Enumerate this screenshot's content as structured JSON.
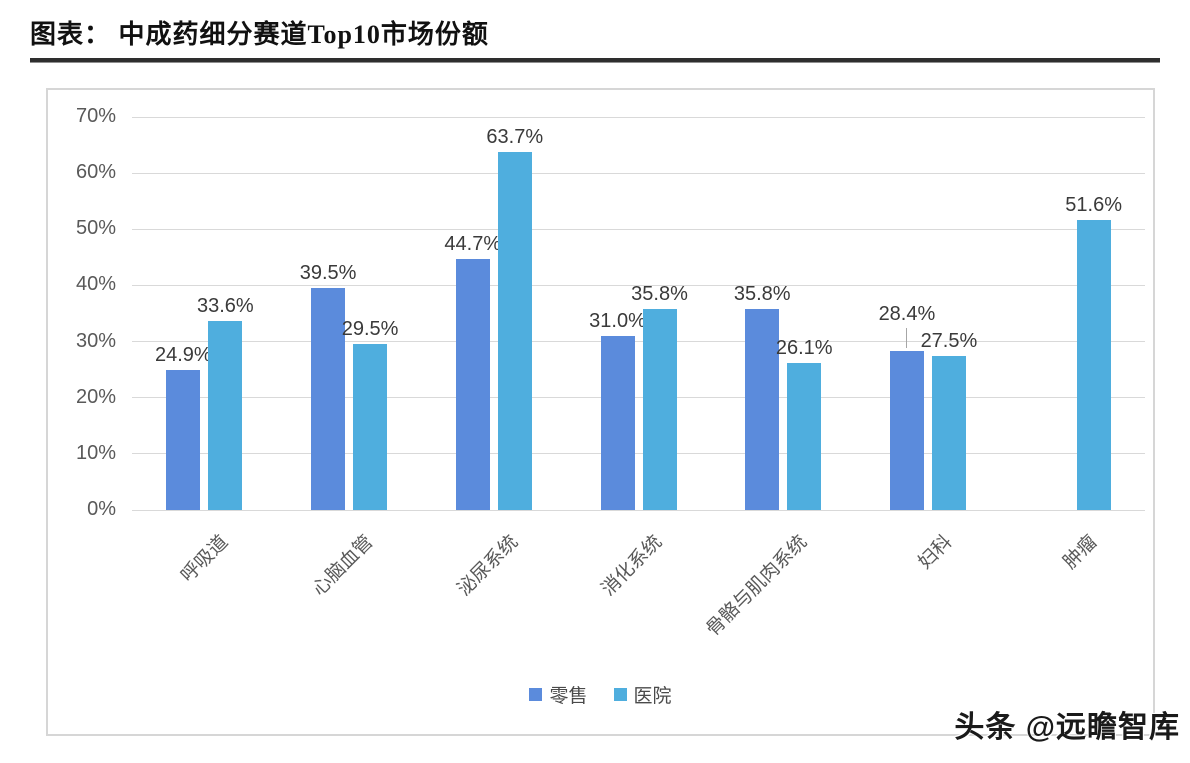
{
  "header": {
    "title": "图表： 中成药细分赛道Top10市场份额"
  },
  "footer": {
    "watermark": "头条 @远瞻智库"
  },
  "colors": {
    "series_retail": "#5B8BDC",
    "series_hospital": "#4FAEDE",
    "gridline": "#d9d9d9",
    "axis_text": "#595959",
    "value_label_text": "#3a3a3a",
    "chart_border": "#d6d6d6"
  },
  "chart_data": {
    "type": "bar",
    "title": "中成药细分赛道Top10市场份额",
    "categories": [
      "呼吸道",
      "心脑血管",
      "泌尿系统",
      "消化系统",
      "骨骼与肌肉系统",
      "妇科",
      "肿瘤"
    ],
    "series": [
      {
        "name": "零售",
        "color": "#5B8BDC",
        "values": [
          24.9,
          39.5,
          44.7,
          31.0,
          35.8,
          28.4,
          null
        ]
      },
      {
        "name": "医院",
        "color": "#4FAEDE",
        "values": [
          33.6,
          29.5,
          63.7,
          35.8,
          26.1,
          27.5,
          51.6
        ]
      }
    ],
    "xlabel": "",
    "ylabel": "",
    "ylim": [
      0,
      70
    ],
    "ytick_step": 10,
    "ytick_labels": [
      "0%",
      "10%",
      "20%",
      "30%",
      "40%",
      "50%",
      "60%",
      "70%"
    ],
    "value_labels": {
      "零售": [
        "24.9%",
        "39.5%",
        "44.7%",
        "31.0%",
        "35.8%",
        "28.4%",
        null
      ],
      "医院": [
        "33.6%",
        "29.5%",
        "63.7%",
        "35.8%",
        "26.1%",
        "27.5%",
        "51.6%"
      ]
    },
    "grid": true,
    "legend_position": "bottom",
    "leader_lines": [
      {
        "series": 0,
        "index": 5
      }
    ]
  }
}
